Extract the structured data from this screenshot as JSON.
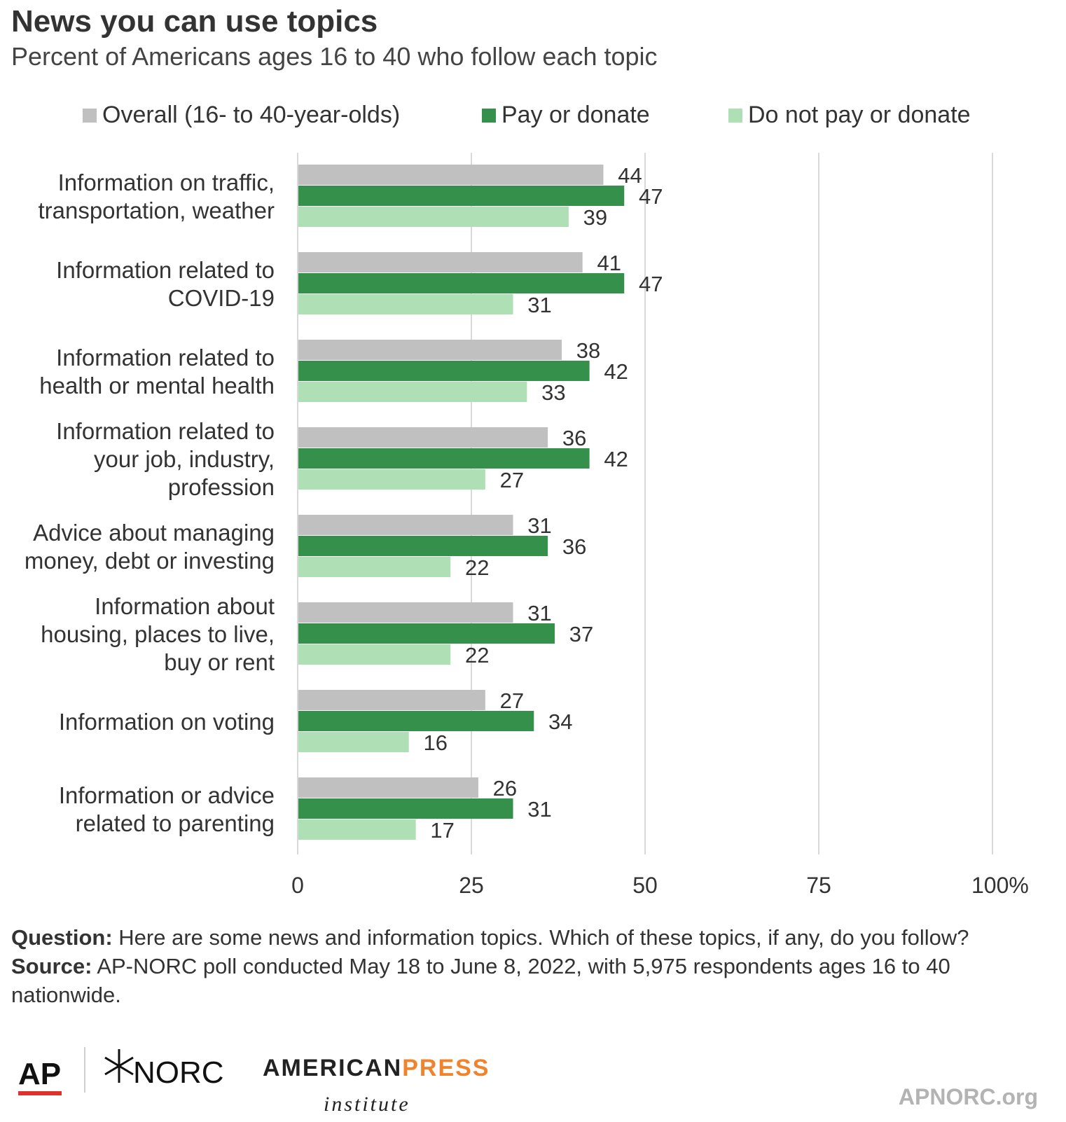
{
  "title": "News you can use topics",
  "subtitle": "Percent of Americans ages 16 to 40 who follow each topic",
  "legend": [
    {
      "label": "Overall (16- to 40-year-olds)",
      "color": "#c0c0c0"
    },
    {
      "label": "Pay or donate",
      "color": "#34904a"
    },
    {
      "label": "Do not pay or donate",
      "color": "#afdfb4"
    }
  ],
  "chart_data": {
    "type": "bar",
    "orientation": "horizontal",
    "categories": [
      [
        "Information on traffic,",
        "transportation, weather"
      ],
      [
        "Information related to",
        "COVID-19"
      ],
      [
        "Information related to",
        "health or mental health"
      ],
      [
        "Information related to",
        "your job, industry,",
        "profession"
      ],
      [
        "Advice about managing",
        "money, debt or investing"
      ],
      [
        "Information about",
        "housing, places to live,",
        "buy or rent"
      ],
      [
        "Information on voting"
      ],
      [
        "Information or advice",
        "related to parenting"
      ]
    ],
    "series": [
      {
        "name": "Overall (16- to 40-year-olds)",
        "color": "#c0c0c0",
        "values": [
          44,
          41,
          38,
          36,
          31,
          31,
          27,
          26
        ]
      },
      {
        "name": "Pay or donate",
        "color": "#34904a",
        "values": [
          47,
          47,
          42,
          42,
          36,
          37,
          34,
          31
        ]
      },
      {
        "name": "Do not pay or donate",
        "color": "#afdfb4",
        "values": [
          39,
          31,
          33,
          27,
          22,
          22,
          16,
          17
        ]
      }
    ],
    "xlim": [
      0,
      100
    ],
    "xticks": [
      "0",
      "25",
      "50",
      "75",
      "100%"
    ],
    "xtick_values": [
      0,
      25,
      50,
      75,
      100
    ],
    "grid": true,
    "legend_position": "top"
  },
  "notes": {
    "question_label": "Question:",
    "question_text": " Here are some news and information topics. Which of these topics, if any, do you follow?",
    "source_label": "Source:",
    "source_text": " AP-NORC poll conducted May 18 to June 8, 2022, with 5,975 respondents ages 16 to 40 nationwide."
  },
  "logos": {
    "ap": "AP",
    "norc": "NORC",
    "api_american": "AMERICAN",
    "api_press": "PRESS",
    "api_institute": "institute"
  },
  "site": "APNORC.org"
}
